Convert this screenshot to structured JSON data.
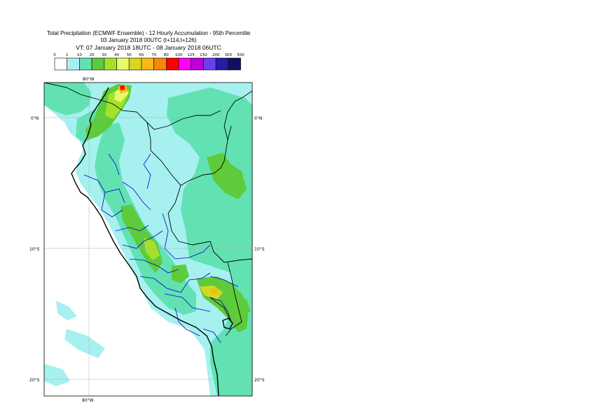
{
  "title": {
    "line1": "Total Precipitation (ECMWF Ensemble) - 12 Hourly Accumulation - 95th Percentile",
    "line2": "03 January 2018 00UTC (t+114,t+126)",
    "line3": "VT: 07 January 2018 18UTC - 08 January 2018 06UTC"
  },
  "legend": {
    "ticks": [
      "0",
      "1",
      "10",
      "20",
      "30",
      "40",
      "50",
      "60",
      "70",
      "80",
      "100",
      "125",
      "150",
      "200",
      "300",
      "500"
    ],
    "colors": [
      "#ffffff",
      "#a6f1f0",
      "#62e2b3",
      "#5ecb3b",
      "#a4e229",
      "#e9f96c",
      "#d5d81f",
      "#f7ba13",
      "#f7860a",
      "#ff0000",
      "#ff00ff",
      "#bd00d5",
      "#6b40ef",
      "#2020a8",
      "#10105f"
    ]
  },
  "axes": {
    "lat_labels_left": [
      "0°N",
      "10°S",
      "20°S"
    ],
    "lat_labels_right": [
      "0°N",
      "10°S",
      "20°S"
    ],
    "lon_label_top": "80°W",
    "lon_label_bottom": "80°W"
  },
  "map": {
    "ocean_color": "#ffffff",
    "colors": {
      "light": "#a6f1f0",
      "medium": "#62e2b3",
      "green": "#5ecb3b",
      "yellow_green": "#a4e229",
      "yellow": "#e9f96c",
      "olive": "#d5d81f",
      "orange": "#f7ba13",
      "red": "#ff0000",
      "coast": "#000000",
      "regions": "#0000cc",
      "grid": "#b0b0b0"
    }
  }
}
